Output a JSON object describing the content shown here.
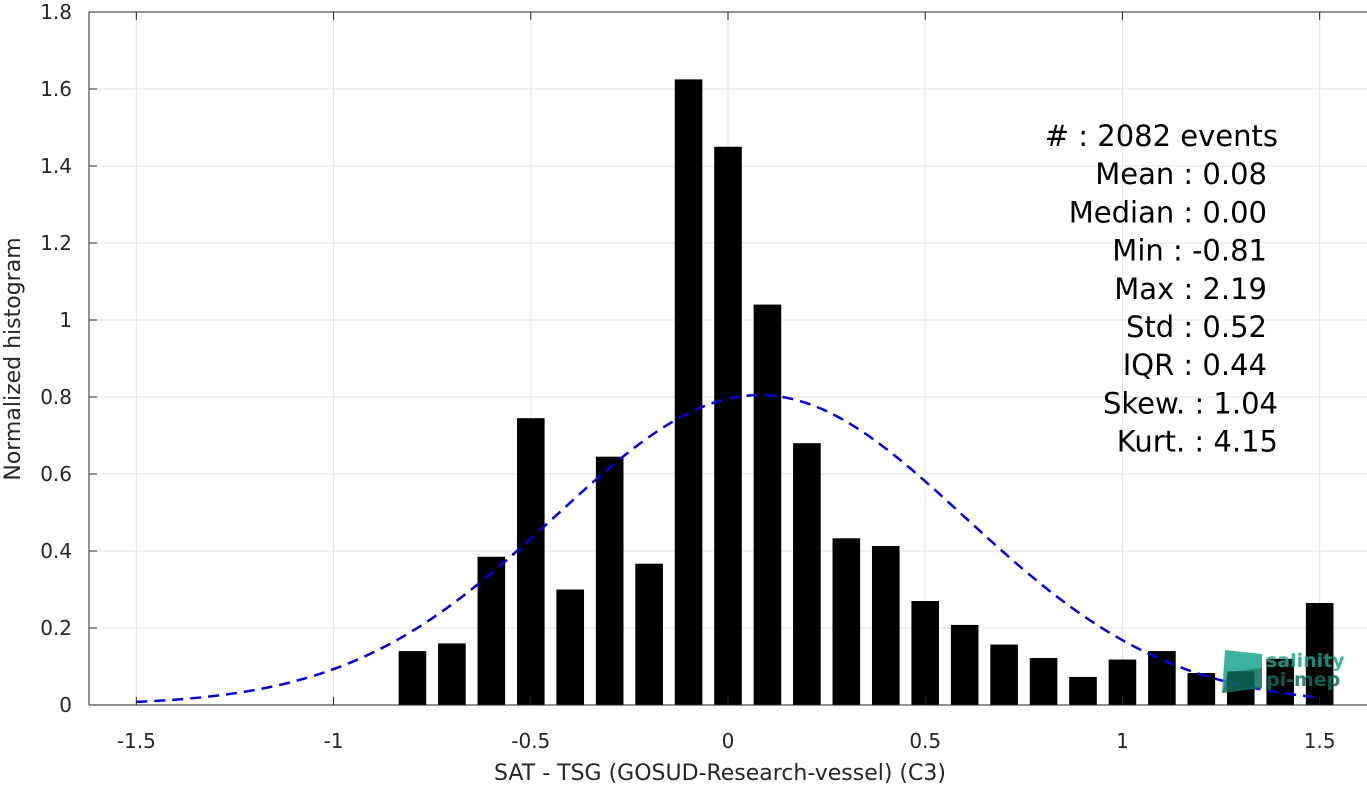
{
  "chart_data": {
    "type": "bar",
    "xlabel": "SAT - TSG (GOSUD-Research-vessel) (C3)",
    "ylabel": "Normalized histogram",
    "xlim": [
      -1.62,
      1.62
    ],
    "ylim": [
      0,
      1.8
    ],
    "grid": true,
    "x_ticks": [
      -1.5,
      -1,
      -0.5,
      0,
      0.5,
      1,
      1.5
    ],
    "x_tick_labels": [
      "-1.5",
      "-1",
      "-0.5",
      "0",
      "0.5",
      "1",
      "1.5"
    ],
    "y_ticks": [
      0,
      0.2,
      0.4,
      0.6,
      0.8,
      1,
      1.2,
      1.4,
      1.6,
      1.8
    ],
    "y_tick_labels": [
      "0",
      "0.2",
      "0.4",
      "0.6",
      "0.8",
      "1",
      "1.2",
      "1.4",
      "1.6",
      "1.8"
    ],
    "bar_color": "#000000",
    "bar_width": 0.07,
    "bars": [
      {
        "x": -0.8,
        "y": 0.14
      },
      {
        "x": -0.7,
        "y": 0.16
      },
      {
        "x": -0.6,
        "y": 0.385
      },
      {
        "x": -0.5,
        "y": 0.745
      },
      {
        "x": -0.4,
        "y": 0.3
      },
      {
        "x": -0.3,
        "y": 0.645
      },
      {
        "x": -0.2,
        "y": 0.367
      },
      {
        "x": -0.1,
        "y": 1.625
      },
      {
        "x": 0.0,
        "y": 1.45
      },
      {
        "x": 0.1,
        "y": 1.04
      },
      {
        "x": 0.2,
        "y": 0.68
      },
      {
        "x": 0.3,
        "y": 0.433
      },
      {
        "x": 0.4,
        "y": 0.413
      },
      {
        "x": 0.5,
        "y": 0.27
      },
      {
        "x": 0.6,
        "y": 0.208
      },
      {
        "x": 0.7,
        "y": 0.157
      },
      {
        "x": 0.8,
        "y": 0.122
      },
      {
        "x": 0.9,
        "y": 0.073
      },
      {
        "x": 1.0,
        "y": 0.118
      },
      {
        "x": 1.1,
        "y": 0.14
      },
      {
        "x": 1.2,
        "y": 0.083
      },
      {
        "x": 1.3,
        "y": 0.088
      },
      {
        "x": 1.4,
        "y": 0.12
      },
      {
        "x": 1.5,
        "y": 0.265
      }
    ],
    "fit_curve": {
      "style": "dashed",
      "color": "#0000dd",
      "x_range": [
        -1.5,
        1.5
      ],
      "mean": 0.08,
      "std": 0.52,
      "peak": 0.805
    },
    "stats": [
      "#  : 2082 events",
      "Mean : 0.08",
      "Median : 0.00",
      "Min : -0.81",
      "Max : 2.19",
      "Std : 0.52",
      "IQR : 0.44",
      "Skew. : 1.04",
      "Kurt. : 4.15"
    ]
  },
  "logo": {
    "line1": "salinity",
    "line2": "pi-mep",
    "color": "#1aa58f"
  }
}
